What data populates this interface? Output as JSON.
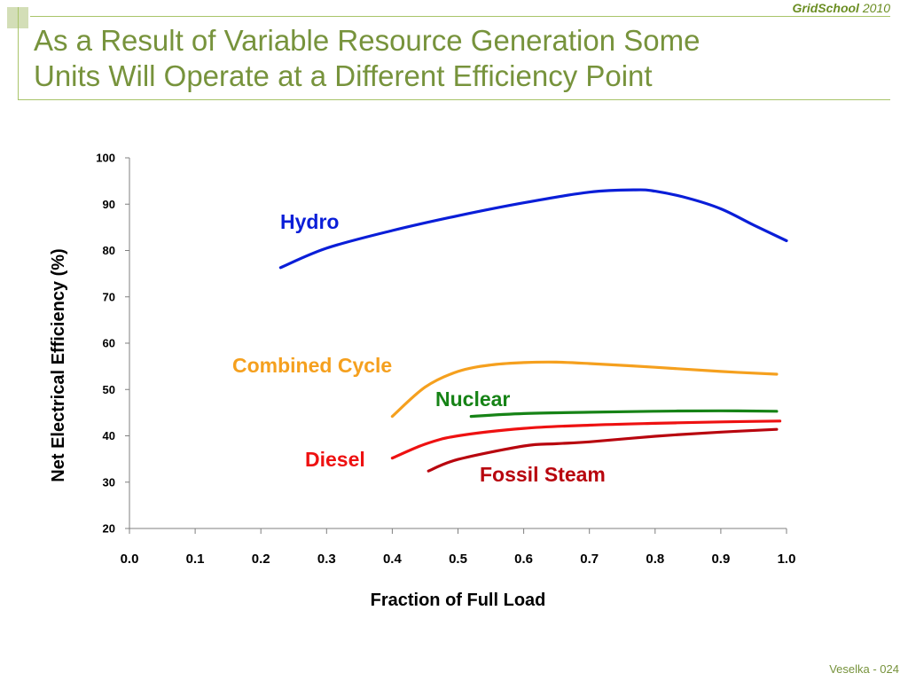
{
  "header": {
    "brand_name": "GridSchool",
    "brand_year": "2010",
    "title_line1": "As a Result of Variable Resource Generation Some",
    "title_line2": "Units Will Operate at a Different Efficiency Point"
  },
  "footer": {
    "text": "Veselka  - 024"
  },
  "colors": {
    "accent": "#77933c",
    "frame": "#a9c46a"
  },
  "chart_data": {
    "type": "line",
    "xlabel": "Fraction of Full Load",
    "ylabel": "Net Electrical Efficiency (%)",
    "xlim": [
      0.0,
      1.0
    ],
    "ylim": [
      20,
      100
    ],
    "x_ticks": [
      "0.0",
      "0.1",
      "0.2",
      "0.3",
      "0.4",
      "0.5",
      "0.6",
      "0.7",
      "0.8",
      "0.9",
      "1.0"
    ],
    "y_ticks": [
      "20",
      "30",
      "40",
      "50",
      "60",
      "70",
      "80",
      "90",
      "100"
    ],
    "grid": false,
    "legend": "none (series labelled directly on chart)",
    "series": [
      {
        "name": "Hydro",
        "color": "#0a1ed8",
        "points": [
          [
            0.23,
            76.3
          ],
          [
            0.3,
            80.5
          ],
          [
            0.4,
            84.3
          ],
          [
            0.5,
            87.5
          ],
          [
            0.6,
            90.3
          ],
          [
            0.7,
            92.6
          ],
          [
            0.77,
            93.1
          ],
          [
            0.8,
            92.8
          ],
          [
            0.85,
            91.3
          ],
          [
            0.9,
            89.0
          ],
          [
            0.95,
            85.5
          ],
          [
            1.0,
            82.1
          ]
        ]
      },
      {
        "name": "Combined Cycle",
        "color": "#f5a01e",
        "points": [
          [
            0.4,
            44.2
          ],
          [
            0.45,
            50.5
          ],
          [
            0.5,
            53.9
          ],
          [
            0.55,
            55.3
          ],
          [
            0.6,
            55.8
          ],
          [
            0.65,
            55.9
          ],
          [
            0.7,
            55.6
          ],
          [
            0.8,
            54.8
          ],
          [
            0.9,
            53.9
          ],
          [
            0.985,
            53.3
          ]
        ]
      },
      {
        "name": "Nuclear",
        "color": "#168316",
        "points": [
          [
            0.52,
            44.2
          ],
          [
            0.6,
            44.8
          ],
          [
            0.7,
            45.1
          ],
          [
            0.8,
            45.3
          ],
          [
            0.9,
            45.4
          ],
          [
            0.985,
            45.3
          ]
        ]
      },
      {
        "name": "Diesel",
        "color": "#ee1111",
        "points": [
          [
            0.4,
            35.2
          ],
          [
            0.45,
            38.2
          ],
          [
            0.5,
            40.0
          ],
          [
            0.6,
            41.6
          ],
          [
            0.7,
            42.3
          ],
          [
            0.8,
            42.7
          ],
          [
            0.9,
            43.0
          ],
          [
            0.99,
            43.2
          ]
        ]
      },
      {
        "name": "Fossil Steam",
        "color": "#b8050e",
        "points": [
          [
            0.455,
            32.4
          ],
          [
            0.5,
            34.9
          ],
          [
            0.6,
            37.8
          ],
          [
            0.65,
            38.3
          ],
          [
            0.7,
            38.7
          ],
          [
            0.8,
            39.9
          ],
          [
            0.9,
            40.8
          ],
          [
            0.985,
            41.4
          ]
        ]
      }
    ]
  }
}
